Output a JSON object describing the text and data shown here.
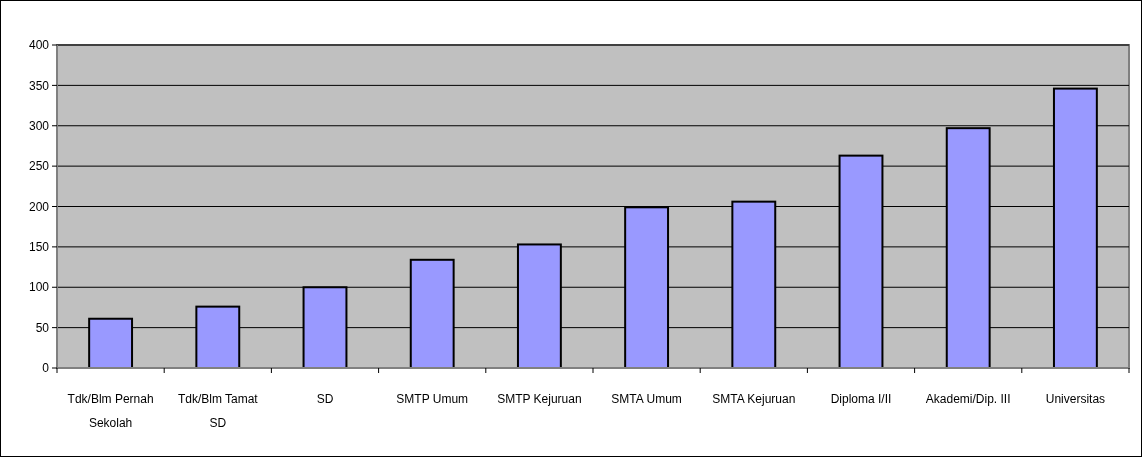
{
  "chart_data": {
    "type": "bar",
    "categories": [
      "Tdk/Blm Pernah Sekolah",
      "Tdk/Blm Tamat SD",
      "SD",
      "SMTP Umum",
      "SMTP Kejuruan",
      "SMTA Umum",
      "SMTA Kejuruan",
      "Diploma I/II",
      "Akademi/Dip. III",
      "Universitas"
    ],
    "values": [
      61,
      76,
      100,
      134,
      153,
      199,
      206,
      263,
      297,
      346
    ],
    "color": "#9999ff",
    "ylim": [
      0,
      400
    ],
    "yticks": [
      0,
      50,
      100,
      150,
      200,
      250,
      300,
      350,
      400
    ],
    "grid": "y"
  }
}
